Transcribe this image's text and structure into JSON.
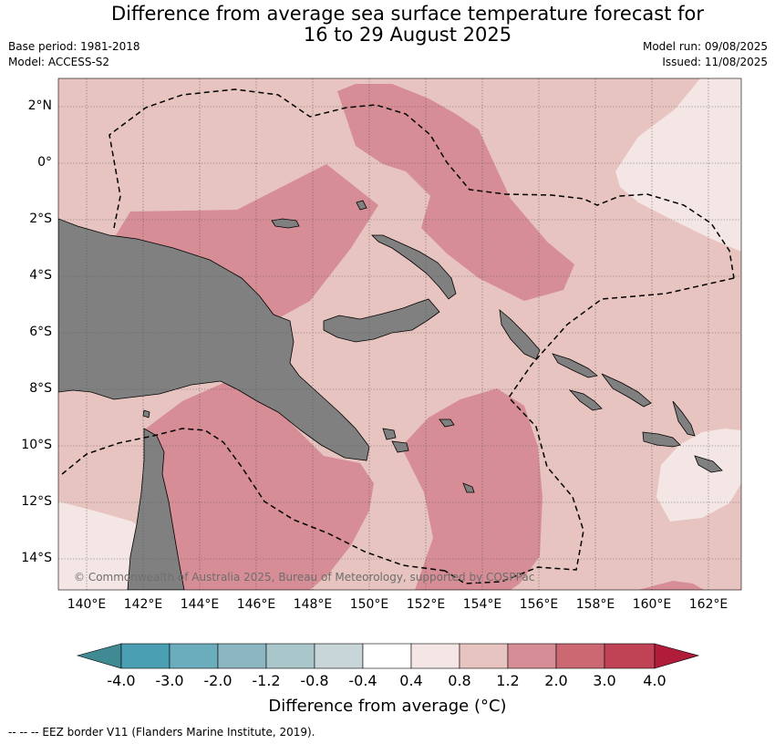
{
  "title_line1": "Difference from average sea surface temperature forecast for",
  "title_line2": "16 to 29 August 2025",
  "base_period": "Base period: 1981-2018",
  "model": "Model: ACCESS-S2",
  "model_run": "Model run: 09/08/2025",
  "issued": "Issued: 11/08/2025",
  "credit": "© Commonwealth of Australia 2025, Bureau of Meteorology, supported by COSPPac",
  "lat_ticks": [
    "2°N",
    "0°",
    "2°S",
    "4°S",
    "6°S",
    "8°S",
    "10°S",
    "12°S",
    "14°S"
  ],
  "lon_ticks": [
    "140°E",
    "142°E",
    "144°E",
    "146°E",
    "148°E",
    "150°E",
    "152°E",
    "154°E",
    "156°E",
    "158°E",
    "160°E",
    "162°E"
  ],
  "colorbar": {
    "title": "Difference from average (°C)",
    "labels": [
      "-4.0",
      "-3.0",
      "-2.0",
      "-1.2",
      "-0.8",
      "-0.4",
      "0.4",
      "0.8",
      "1.2",
      "2.0",
      "3.0",
      "4.0"
    ],
    "colors": [
      "#3f8a93",
      "#4aa0b2",
      "#6cadbd",
      "#8cb6c2",
      "#a9c6cb",
      "#c8d6da",
      "#ffffff",
      "#f4e6e4",
      "#e7c4bf",
      "#d68d95",
      "#cb6871",
      "#bf4255",
      "#b01c3a"
    ]
  },
  "colors": {
    "land": "#808080",
    "anomaly_0_4_0_8": "#f4e6e4",
    "anomaly_0_8_1_2": "#e7c4bf",
    "anomaly_1_2_2_0": "#d68d95"
  },
  "footer": "-- -- -- EEZ border V11 (Flanders Marine Institute, 2019)."
}
